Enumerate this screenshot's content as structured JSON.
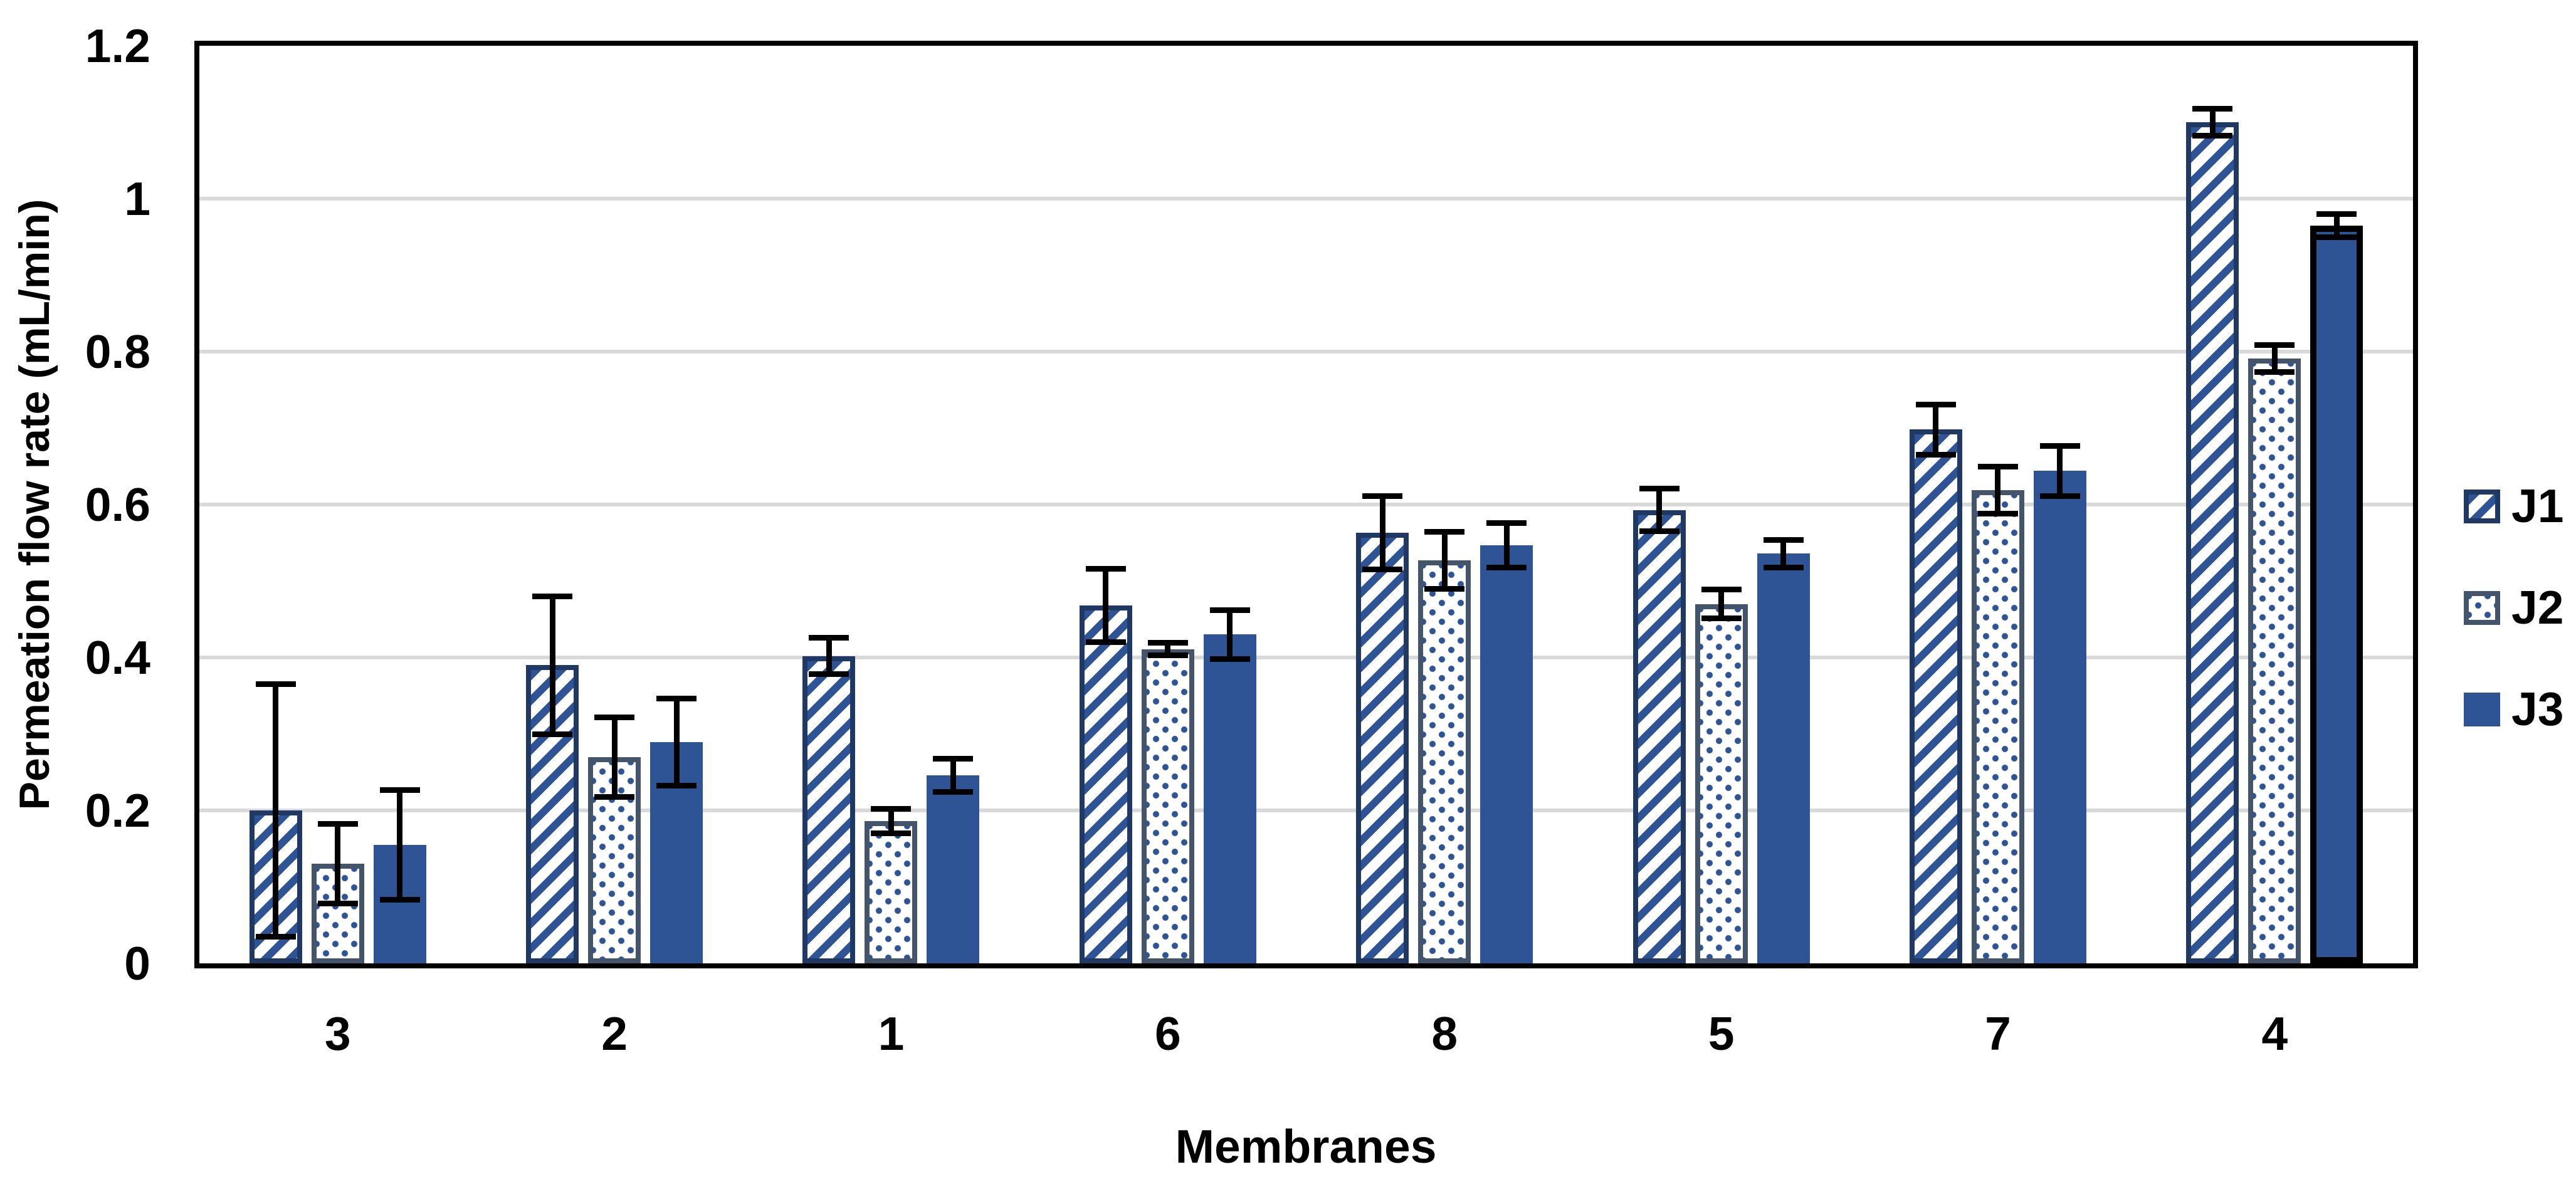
{
  "chart_data": {
    "type": "bar",
    "title": "",
    "xlabel": "Membranes",
    "ylabel": "Permeation flow rate (mL/min)",
    "categories": [
      "3",
      "2",
      "1",
      "6",
      "8",
      "5",
      "7",
      "4"
    ],
    "series": [
      {
        "name": "J1",
        "pattern": "diagonal-hatch",
        "values": [
          0.2,
          0.39,
          0.402,
          0.468,
          0.563,
          0.593,
          0.698,
          1.1
        ],
        "errors": [
          0.165,
          0.09,
          0.024,
          0.048,
          0.048,
          0.028,
          0.033,
          0.018
        ]
      },
      {
        "name": "J2",
        "pattern": "dots",
        "values": [
          0.13,
          0.27,
          0.186,
          0.411,
          0.527,
          0.47,
          0.619,
          0.791
        ],
        "errors": [
          0.052,
          0.052,
          0.016,
          0.008,
          0.037,
          0.019,
          0.031,
          0.018
        ]
      },
      {
        "name": "J3",
        "pattern": "solid",
        "values": [
          0.155,
          0.289,
          0.246,
          0.43,
          0.547,
          0.536,
          0.644,
          0.965
        ],
        "errors": [
          0.072,
          0.057,
          0.022,
          0.032,
          0.029,
          0.018,
          0.033,
          0.015
        ],
        "black_outline_categories": [
          "4"
        ]
      }
    ],
    "ylim": [
      0,
      1.2
    ],
    "yticks": [
      0,
      0.2,
      0.4,
      0.6,
      0.8,
      1,
      1.2
    ],
    "ytick_labels": [
      "0",
      "0.2",
      "0.4",
      "0.6",
      "0.8",
      "1",
      "1.2"
    ],
    "grid": true,
    "error_bars": true,
    "legend_position": "right-middle",
    "colors": {
      "bar_blue": "#2F5496",
      "j1_border": "#1F3864",
      "j2_border": "#44546A",
      "j3_outline_black": "#000000",
      "gridline": "#D9D9D9",
      "frame": "#000000",
      "error_bar": "#000000",
      "text": "#000000"
    }
  }
}
